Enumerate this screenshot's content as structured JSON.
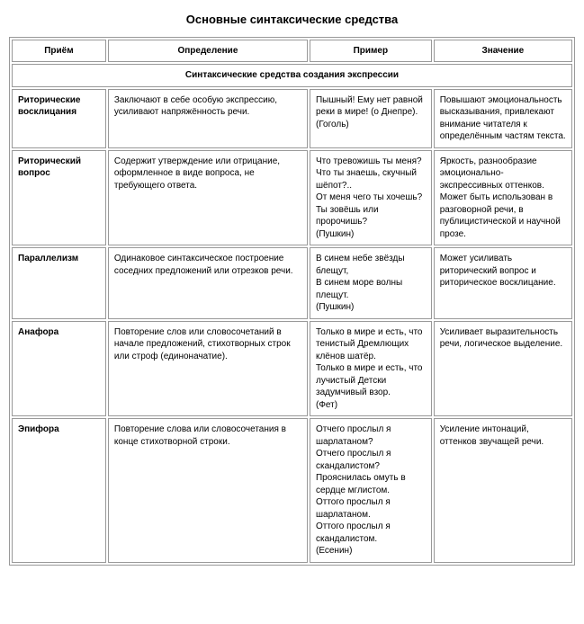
{
  "title": "Основные синтаксические средства",
  "columns": [
    "Приём",
    "Определение",
    "Пример",
    "Значение"
  ],
  "section_header": "Синтаксические средства создания экспрессии",
  "rows": [
    {
      "name": "Риторические восклицания",
      "definition": "Заключают в себе особую экспрессию, усиливают напряжённость речи.",
      "example": "Пышный! Ему нет равной реки в мире! (о Днепре). (Гоголь)",
      "meaning": "Повышают эмоциональность высказывания, привлекают внимание читателя к определённым частям текста."
    },
    {
      "name": "Риторический вопрос",
      "definition": "Содержит утверждение или отрицание, оформленное в виде вопроса, не требующего ответа.",
      "example": "Что тревожишь ты меня?\nЧто ты знаешь, скучный шёпот?..\nОт меня чего ты хочешь?\nТы зовёшь или пророчишь?\n(Пушкин)",
      "meaning": "Яркость, разнообразие эмоционально-экспрессивных оттенков. Может быть использован в разговорной речи, в публицистической и научной прозе."
    },
    {
      "name": "Параллелизм",
      "definition": "Одинаковое синтаксическое построение соседних предложений или отрезков речи.",
      "example": "В синем небе звёзды блещут,\nВ синем море волны плещут.\n(Пушкин)",
      "meaning": "Может усиливать риторический вопрос и риторическое восклицание."
    },
    {
      "name": "Анафора",
      "definition": "Повторение слов или словосочетаний в начале предложений, стихотворных строк или строф (единоначатие).",
      "example": "Только в мире и есть, что тенистый Дремлющих клёнов шатёр.\nТолько в мире и есть, что лучистый Детски задумчивый взор.\n(Фет)",
      "meaning": "Усиливает выразительность речи, логическое выделение."
    },
    {
      "name": "Эпифора",
      "definition": "Повторение слова или словосочетания в конце стихотворной строки.",
      "example": "Отчего прослыл я шарлатаном?\nОтчего прослыл я скандалистом?\nПрояснилась омуть в сердце мглистом.\nОттого прослыл я шарлатаном.\nОттого прослыл я скандалистом.\n(Есенин)",
      "meaning": "Усиление интонаций, оттенков звучащей речи."
    }
  ],
  "styles": {
    "background_color": "#ffffff",
    "border_color": "#999999",
    "text_color": "#000000",
    "title_fontsize": 13,
    "body_fontsize": 10,
    "col_widths_pct": [
      17,
      36,
      22,
      25
    ]
  }
}
